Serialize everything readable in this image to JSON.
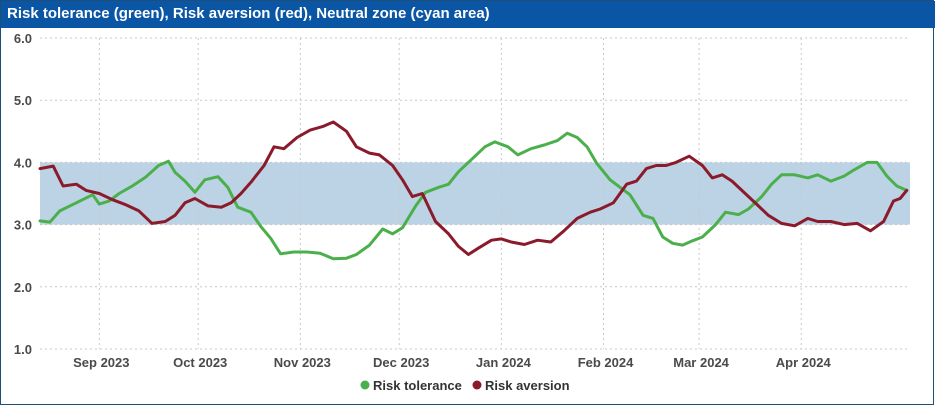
{
  "header": {
    "title": "Risk tolerance (green), Risk aversion (red), Neutral zone (cyan area)"
  },
  "colors": {
    "tolerance": "#4bb04b",
    "aversion": "#8b1a2b",
    "band": "#bcd3e6",
    "title_bg": "#0b56a4"
  },
  "chart_data": {
    "type": "line",
    "title": "Risk tolerance (green), Risk aversion (red), Neutral zone (cyan area)",
    "x_unit": "date",
    "x_range": [
      "2023-08-14",
      "2024-05-04"
    ],
    "ylim": [
      1.0,
      6.0
    ],
    "y_ticks": [
      "1.0",
      "2.0",
      "3.0",
      "4.0",
      "5.0",
      "6.0"
    ],
    "x_ticks": [
      {
        "date": "2023-09-01",
        "label": "Sep 2023"
      },
      {
        "date": "2023-10-01",
        "label": "Oct 2023"
      },
      {
        "date": "2023-11-01",
        "label": "Nov 2023"
      },
      {
        "date": "2023-12-01",
        "label": "Dec 2023"
      },
      {
        "date": "2024-01-01",
        "label": "Jan 2024"
      },
      {
        "date": "2024-02-01",
        "label": "Feb 2024"
      },
      {
        "date": "2024-03-01",
        "label": "Mar 2024"
      },
      {
        "date": "2024-04-01",
        "label": "Apr 2024"
      }
    ],
    "neutral_zone": [
      3.0,
      4.0
    ],
    "grid": true,
    "legend_position": "bottom",
    "series": [
      {
        "name": "Risk tolerance",
        "color": "#4bb04b",
        "points": [
          [
            "2023-08-14",
            3.06
          ],
          [
            "2023-08-17",
            3.04
          ],
          [
            "2023-08-20",
            3.22
          ],
          [
            "2023-08-25",
            3.35
          ],
          [
            "2023-08-30",
            3.48
          ],
          [
            "2023-09-01",
            3.33
          ],
          [
            "2023-09-04",
            3.38
          ],
          [
            "2023-09-07",
            3.5
          ],
          [
            "2023-09-11",
            3.62
          ],
          [
            "2023-09-15",
            3.76
          ],
          [
            "2023-09-19",
            3.95
          ],
          [
            "2023-09-22",
            4.02
          ],
          [
            "2023-09-24",
            3.84
          ],
          [
            "2023-09-27",
            3.7
          ],
          [
            "2023-09-30",
            3.52
          ],
          [
            "2023-10-03",
            3.72
          ],
          [
            "2023-10-07",
            3.77
          ],
          [
            "2023-10-10",
            3.6
          ],
          [
            "2023-10-13",
            3.28
          ],
          [
            "2023-10-17",
            3.2
          ],
          [
            "2023-10-20",
            2.97
          ],
          [
            "2023-10-23",
            2.78
          ],
          [
            "2023-10-26",
            2.53
          ],
          [
            "2023-10-30",
            2.56
          ],
          [
            "2023-11-03",
            2.56
          ],
          [
            "2023-11-07",
            2.54
          ],
          [
            "2023-11-11",
            2.45
          ],
          [
            "2023-11-15",
            2.46
          ],
          [
            "2023-11-18",
            2.52
          ],
          [
            "2023-11-22",
            2.67
          ],
          [
            "2023-11-26",
            2.93
          ],
          [
            "2023-11-29",
            2.85
          ],
          [
            "2023-12-02",
            2.95
          ],
          [
            "2023-12-06",
            3.3
          ],
          [
            "2023-12-09",
            3.52
          ],
          [
            "2023-12-13",
            3.6
          ],
          [
            "2023-12-16",
            3.65
          ],
          [
            "2023-12-19",
            3.85
          ],
          [
            "2023-12-23",
            4.05
          ],
          [
            "2023-12-27",
            4.25
          ],
          [
            "2023-12-30",
            4.33
          ],
          [
            "2024-01-03",
            4.25
          ],
          [
            "2024-01-06",
            4.12
          ],
          [
            "2024-01-10",
            4.22
          ],
          [
            "2024-01-14",
            4.28
          ],
          [
            "2024-01-18",
            4.35
          ],
          [
            "2024-01-21",
            4.47
          ],
          [
            "2024-01-24",
            4.4
          ],
          [
            "2024-01-27",
            4.25
          ],
          [
            "2024-01-30",
            3.98
          ],
          [
            "2024-02-03",
            3.72
          ],
          [
            "2024-02-06",
            3.6
          ],
          [
            "2024-02-09",
            3.48
          ],
          [
            "2024-02-13",
            3.15
          ],
          [
            "2024-02-16",
            3.1
          ],
          [
            "2024-02-19",
            2.8
          ],
          [
            "2024-02-22",
            2.7
          ],
          [
            "2024-02-25",
            2.67
          ],
          [
            "2024-02-28",
            2.74
          ],
          [
            "2024-03-02",
            2.8
          ],
          [
            "2024-03-06",
            3.0
          ],
          [
            "2024-03-09",
            3.2
          ],
          [
            "2024-03-13",
            3.16
          ],
          [
            "2024-03-16",
            3.25
          ],
          [
            "2024-03-20",
            3.45
          ],
          [
            "2024-03-23",
            3.65
          ],
          [
            "2024-03-26",
            3.8
          ],
          [
            "2024-03-30",
            3.8
          ],
          [
            "2024-04-03",
            3.75
          ],
          [
            "2024-04-06",
            3.8
          ],
          [
            "2024-04-10",
            3.7
          ],
          [
            "2024-04-14",
            3.78
          ],
          [
            "2024-04-17",
            3.88
          ],
          [
            "2024-04-21",
            4.0
          ],
          [
            "2024-04-24",
            4.0
          ],
          [
            "2024-04-27",
            3.78
          ],
          [
            "2024-04-30",
            3.62
          ],
          [
            "2024-05-03",
            3.55
          ]
        ]
      },
      {
        "name": "Risk aversion",
        "color": "#8b1a2b",
        "points": [
          [
            "2023-08-14",
            3.9
          ],
          [
            "2023-08-18",
            3.94
          ],
          [
            "2023-08-21",
            3.62
          ],
          [
            "2023-08-25",
            3.65
          ],
          [
            "2023-08-28",
            3.55
          ],
          [
            "2023-09-01",
            3.5
          ],
          [
            "2023-09-05",
            3.4
          ],
          [
            "2023-09-09",
            3.32
          ],
          [
            "2023-09-13",
            3.22
          ],
          [
            "2023-09-17",
            3.02
          ],
          [
            "2023-09-21",
            3.05
          ],
          [
            "2023-09-24",
            3.15
          ],
          [
            "2023-09-27",
            3.35
          ],
          [
            "2023-09-30",
            3.42
          ],
          [
            "2023-10-04",
            3.3
          ],
          [
            "2023-10-08",
            3.28
          ],
          [
            "2023-10-11",
            3.35
          ],
          [
            "2023-10-14",
            3.5
          ],
          [
            "2023-10-17",
            3.68
          ],
          [
            "2023-10-21",
            3.95
          ],
          [
            "2023-10-24",
            4.25
          ],
          [
            "2023-10-27",
            4.22
          ],
          [
            "2023-10-31",
            4.4
          ],
          [
            "2023-11-04",
            4.52
          ],
          [
            "2023-11-08",
            4.58
          ],
          [
            "2023-11-11",
            4.65
          ],
          [
            "2023-11-15",
            4.5
          ],
          [
            "2023-11-18",
            4.25
          ],
          [
            "2023-11-22",
            4.15
          ],
          [
            "2023-11-25",
            4.12
          ],
          [
            "2023-11-29",
            3.95
          ],
          [
            "2023-12-02",
            3.72
          ],
          [
            "2023-12-05",
            3.45
          ],
          [
            "2023-12-08",
            3.5
          ],
          [
            "2023-12-12",
            3.05
          ],
          [
            "2023-12-16",
            2.85
          ],
          [
            "2023-12-19",
            2.65
          ],
          [
            "2023-12-22",
            2.52
          ],
          [
            "2023-12-25",
            2.62
          ],
          [
            "2023-12-29",
            2.75
          ],
          [
            "2024-01-01",
            2.77
          ],
          [
            "2024-01-04",
            2.72
          ],
          [
            "2024-01-08",
            2.68
          ],
          [
            "2024-01-12",
            2.75
          ],
          [
            "2024-01-16",
            2.72
          ],
          [
            "2024-01-20",
            2.9
          ],
          [
            "2024-01-24",
            3.1
          ],
          [
            "2024-01-28",
            3.2
          ],
          [
            "2024-01-31",
            3.25
          ],
          [
            "2024-02-04",
            3.35
          ],
          [
            "2024-02-08",
            3.65
          ],
          [
            "2024-02-11",
            3.7
          ],
          [
            "2024-02-14",
            3.9
          ],
          [
            "2024-02-17",
            3.95
          ],
          [
            "2024-02-20",
            3.95
          ],
          [
            "2024-02-23",
            4.0
          ],
          [
            "2024-02-27",
            4.1
          ],
          [
            "2024-03-02",
            3.95
          ],
          [
            "2024-03-05",
            3.75
          ],
          [
            "2024-03-08",
            3.8
          ],
          [
            "2024-03-11",
            3.7
          ],
          [
            "2024-03-15",
            3.5
          ],
          [
            "2024-03-19",
            3.3
          ],
          [
            "2024-03-22",
            3.15
          ],
          [
            "2024-03-26",
            3.02
          ],
          [
            "2024-03-30",
            2.98
          ],
          [
            "2024-04-03",
            3.1
          ],
          [
            "2024-04-06",
            3.05
          ],
          [
            "2024-04-10",
            3.05
          ],
          [
            "2024-04-14",
            3.0
          ],
          [
            "2024-04-18",
            3.02
          ],
          [
            "2024-04-22",
            2.9
          ],
          [
            "2024-04-26",
            3.05
          ],
          [
            "2024-04-29",
            3.38
          ],
          [
            "2024-05-01",
            3.42
          ],
          [
            "2024-05-03",
            3.55
          ]
        ]
      }
    ]
  },
  "legend": [
    {
      "label": "Risk tolerance",
      "color": "#4bb04b"
    },
    {
      "label": "Risk aversion",
      "color": "#8b1a2b"
    }
  ]
}
